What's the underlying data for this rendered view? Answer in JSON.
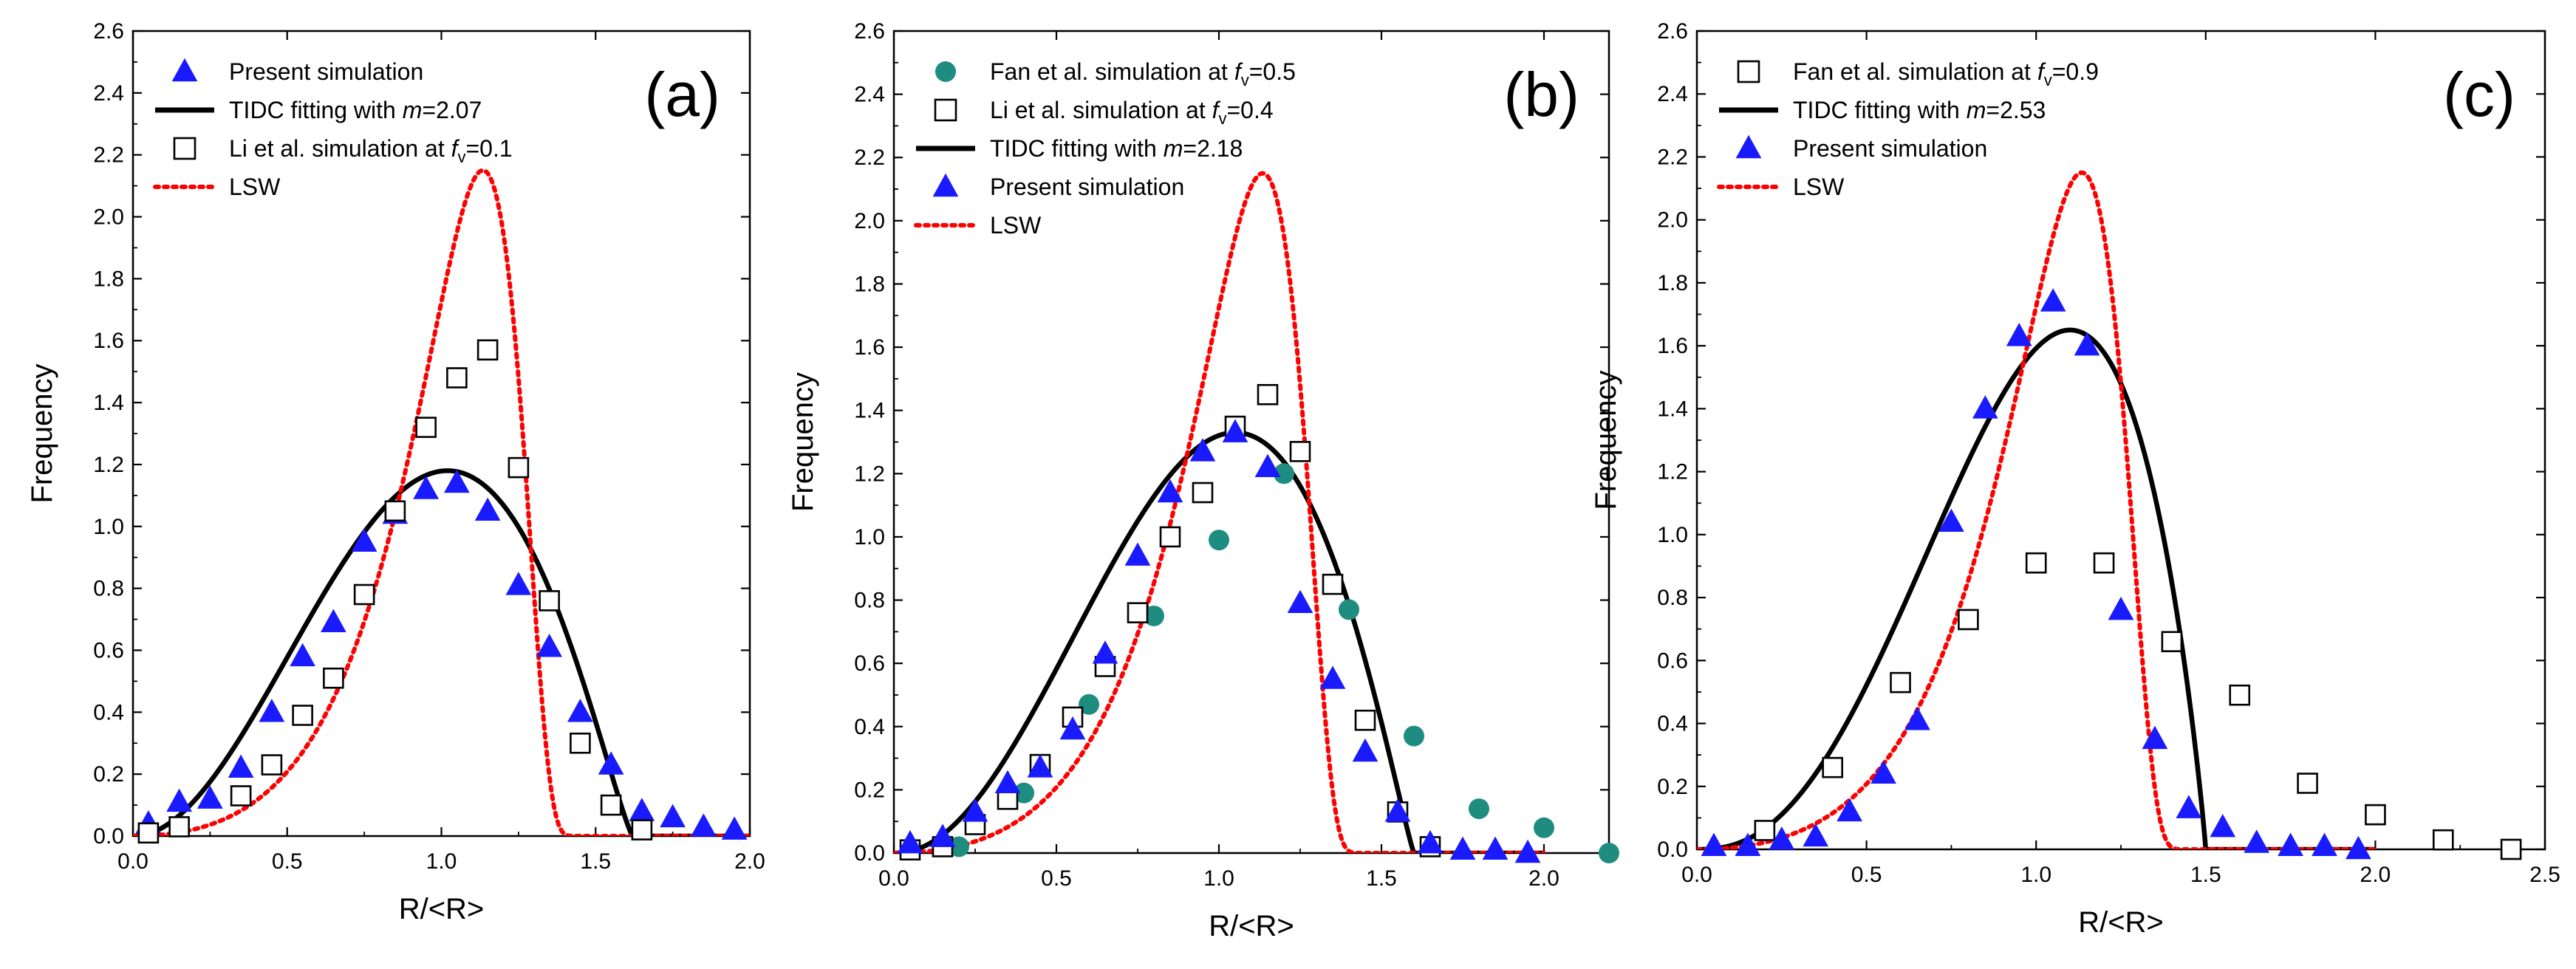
{
  "chart_data": [
    {
      "type": "scatter",
      "panel_label": "(a)",
      "xlabel": "R/<R>",
      "ylabel": "Frequency",
      "xlim": [
        0,
        2.0
      ],
      "ylim": [
        0,
        2.6
      ],
      "xticks": [
        0.0,
        0.5,
        1.0,
        1.5,
        2.0
      ],
      "xtick_labels": [
        "0.0",
        "0.5",
        "1.0",
        "1.5",
        "2.0"
      ],
      "yticks": [
        0,
        0.2,
        0.4,
        0.6,
        0.8,
        1.0,
        1.2,
        1.4,
        1.6,
        1.8,
        2.0,
        2.2,
        2.4,
        2.6
      ],
      "ytick_labels": [
        "0.0",
        "0.2",
        "0.4",
        "0.6",
        "0.8",
        "1.0",
        "1.2",
        "1.4",
        "1.6",
        "1.8",
        "2.0",
        "2.2",
        "2.4",
        "2.6"
      ],
      "grid": false,
      "legend_position": "top-left",
      "legend": [
        {
          "marker": "triangle",
          "parts": [
            {
              "t": "Present simulation"
            }
          ]
        },
        {
          "marker": "line-black",
          "parts": [
            {
              "t": "TIDC fitting with "
            },
            {
              "t": "m",
              "i": true
            },
            {
              "t": "=2.07"
            }
          ]
        },
        {
          "marker": "square",
          "parts": [
            {
              "t": "Li et al. simulation at "
            },
            {
              "t": "f",
              "i": true
            },
            {
              "t": "v",
              "sub": true
            },
            {
              "t": "=0.1"
            }
          ]
        },
        {
          "marker": "dotted-red",
          "parts": [
            {
              "t": "LSW"
            }
          ]
        }
      ],
      "series": [
        {
          "name": "Present simulation",
          "style": "triangle",
          "color": "#1a1aff",
          "x": [
            0.05,
            0.15,
            0.25,
            0.35,
            0.45,
            0.55,
            0.65,
            0.75,
            0.85,
            0.95,
            1.05,
            1.15,
            1.25,
            1.35,
            1.45,
            1.55,
            1.65,
            1.75,
            1.85,
            1.95
          ],
          "y": [
            0.04,
            0.11,
            0.12,
            0.22,
            0.4,
            0.58,
            0.69,
            0.95,
            1.04,
            1.12,
            1.14,
            1.05,
            0.81,
            0.61,
            0.4,
            0.23,
            0.08,
            0.06,
            0.03,
            0.02
          ]
        },
        {
          "name": "Li et al. simulation",
          "style": "square",
          "color": "#000000",
          "x": [
            0.05,
            0.15,
            0.35,
            0.45,
            0.55,
            0.65,
            0.75,
            0.85,
            0.95,
            1.05,
            1.15,
            1.25,
            1.35,
            1.45,
            1.55,
            1.65
          ],
          "y": [
            0.01,
            0.03,
            0.13,
            0.23,
            0.39,
            0.51,
            0.78,
            1.05,
            1.32,
            1.48,
            1.57,
            1.19,
            0.76,
            0.3,
            0.1,
            0.02
          ]
        },
        {
          "name": "TIDC fitting",
          "style": "solid-line",
          "color": "#000000",
          "curve": "tidc",
          "m": 2.07,
          "peak": 1.18,
          "xpeak": 1.02,
          "xmax": 1.62
        },
        {
          "name": "LSW",
          "style": "dotted-line",
          "color": "#ff0000",
          "curve": "lsw"
        }
      ]
    },
    {
      "type": "scatter",
      "panel_label": "(b)",
      "xlabel": "R/<R>",
      "ylabel": "Frequency",
      "xlim": [
        0,
        2.2
      ],
      "ylim": [
        0,
        2.6
      ],
      "xticks": [
        0.0,
        0.5,
        1.0,
        1.5,
        2.0
      ],
      "xtick_labels": [
        "0.0",
        "0.5",
        "1.0",
        "1.5",
        "2.0"
      ],
      "yticks": [
        0,
        0.2,
        0.4,
        0.6,
        0.8,
        1.0,
        1.2,
        1.4,
        1.6,
        1.8,
        2.0,
        2.2,
        2.4,
        2.6
      ],
      "ytick_labels": [
        "0.0",
        "0.2",
        "0.4",
        "0.6",
        "0.8",
        "1.0",
        "1.2",
        "1.4",
        "1.6",
        "1.8",
        "2.0",
        "2.2",
        "2.4",
        "2.6"
      ],
      "grid": false,
      "legend_position": "top-left",
      "legend": [
        {
          "marker": "circle",
          "parts": [
            {
              "t": "Fan et al. simulation at "
            },
            {
              "t": "f",
              "i": true
            },
            {
              "t": "v",
              "sub": true
            },
            {
              "t": "=0.5"
            }
          ]
        },
        {
          "marker": "square",
          "parts": [
            {
              "t": "Li et al. simulation at "
            },
            {
              "t": "f",
              "i": true
            },
            {
              "t": "v",
              "sub": true
            },
            {
              "t": "=0.4"
            }
          ]
        },
        {
          "marker": "line-black",
          "parts": [
            {
              "t": "TIDC fitting with "
            },
            {
              "t": "m",
              "i": true
            },
            {
              "t": "=2.18"
            }
          ]
        },
        {
          "marker": "triangle",
          "parts": [
            {
              "t": "Present simulation"
            }
          ]
        },
        {
          "marker": "dotted-red",
          "parts": [
            {
              "t": "LSW"
            }
          ]
        }
      ],
      "series": [
        {
          "name": "Fan et al. simulation",
          "style": "circle",
          "color": "#1f8c80",
          "x": [
            0.2,
            0.4,
            0.6,
            0.8,
            1.0,
            1.2,
            1.4,
            1.6,
            1.8,
            2.0,
            2.2
          ],
          "y": [
            0.02,
            0.19,
            0.47,
            0.75,
            0.99,
            1.2,
            0.77,
            0.37,
            0.14,
            0.08,
            0.0
          ]
        },
        {
          "name": "Li et al. simulation",
          "style": "square",
          "color": "#000000",
          "x": [
            0.05,
            0.15,
            0.25,
            0.35,
            0.45,
            0.55,
            0.65,
            0.75,
            0.85,
            0.95,
            1.05,
            1.15,
            1.25,
            1.35,
            1.45,
            1.55,
            1.65
          ],
          "y": [
            0.01,
            0.02,
            0.09,
            0.17,
            0.28,
            0.43,
            0.59,
            0.76,
            1.0,
            1.14,
            1.35,
            1.45,
            1.27,
            0.85,
            0.42,
            0.13,
            0.02
          ]
        },
        {
          "name": "Present simulation",
          "style": "triangle",
          "color": "#1a1aff",
          "x": [
            0.05,
            0.15,
            0.25,
            0.35,
            0.45,
            0.55,
            0.65,
            0.75,
            0.85,
            0.95,
            1.05,
            1.15,
            1.25,
            1.35,
            1.45,
            1.55,
            1.65,
            1.75,
            1.85,
            1.95
          ],
          "y": [
            0.03,
            0.05,
            0.13,
            0.22,
            0.27,
            0.39,
            0.63,
            0.94,
            1.14,
            1.27,
            1.33,
            1.22,
            0.79,
            0.55,
            0.32,
            0.13,
            0.03,
            0.01,
            0.01,
            0.0
          ]
        },
        {
          "name": "TIDC fitting",
          "style": "solid-line",
          "color": "#000000",
          "curve": "tidc",
          "m": 2.18,
          "peak": 1.33,
          "xpeak": 1.05,
          "xmax": 1.6
        },
        {
          "name": "LSW",
          "style": "dotted-line",
          "color": "#ff0000",
          "curve": "lsw"
        }
      ]
    },
    {
      "type": "scatter",
      "panel_label": "(c)",
      "xlabel": "R/<R>",
      "ylabel": "Frequency",
      "xlim": [
        0,
        2.5
      ],
      "ylim": [
        0,
        2.6
      ],
      "xticks": [
        0.0,
        0.5,
        1.0,
        1.5,
        2.0,
        2.5
      ],
      "xtick_labels": [
        "0.0",
        "0.5",
        "1.0",
        "1.5",
        "2.0",
        "2.5"
      ],
      "yticks": [
        0,
        0.2,
        0.4,
        0.6,
        0.8,
        1.0,
        1.2,
        1.4,
        1.6,
        1.8,
        2.0,
        2.2,
        2.4,
        2.6
      ],
      "ytick_labels": [
        "0.0",
        "0.2",
        "0.4",
        "0.6",
        "0.8",
        "1.0",
        "1.2",
        "1.4",
        "1.6",
        "1.8",
        "2.0",
        "2.2",
        "2.4",
        "2.6"
      ],
      "grid": false,
      "legend_position": "top-left",
      "legend": [
        {
          "marker": "square",
          "parts": [
            {
              "t": "Fan et al. simulation at "
            },
            {
              "t": "f",
              "i": true
            },
            {
              "t": "v",
              "sub": true
            },
            {
              "t": "=0.9"
            }
          ]
        },
        {
          "marker": "line-black",
          "parts": [
            {
              "t": "TIDC fitting with "
            },
            {
              "t": "m",
              "i": true
            },
            {
              "t": "=2.53"
            }
          ]
        },
        {
          "marker": "triangle",
          "parts": [
            {
              "t": "Present simulation"
            }
          ]
        },
        {
          "marker": "dotted-red",
          "parts": [
            {
              "t": "LSW"
            }
          ]
        }
      ],
      "series": [
        {
          "name": "Fan et al. simulation",
          "style": "square",
          "color": "#000000",
          "x": [
            0.2,
            0.4,
            0.6,
            0.8,
            1.0,
            1.2,
            1.4,
            1.6,
            1.8,
            2.0,
            2.2,
            2.4
          ],
          "y": [
            0.06,
            0.26,
            0.53,
            0.73,
            0.91,
            0.91,
            0.66,
            0.49,
            0.21,
            0.11,
            0.03,
            0.0
          ]
        },
        {
          "name": "Present simulation",
          "style": "triangle",
          "color": "#1a1aff",
          "x": [
            0.05,
            0.15,
            0.25,
            0.35,
            0.45,
            0.55,
            0.65,
            0.75,
            0.85,
            0.95,
            1.05,
            1.15,
            1.25,
            1.35,
            1.45,
            1.55,
            1.65,
            1.75,
            1.85,
            1.95
          ],
          "y": [
            0.01,
            0.01,
            0.03,
            0.04,
            0.12,
            0.24,
            0.41,
            1.04,
            1.4,
            1.63,
            1.74,
            1.6,
            0.76,
            0.35,
            0.13,
            0.07,
            0.02,
            0.01,
            0.01,
            0.0
          ]
        },
        {
          "name": "TIDC fitting",
          "style": "solid-line",
          "color": "#000000",
          "curve": "tidc",
          "m": 2.53,
          "peak": 1.65,
          "xpeak": 1.1,
          "xmax": 1.5
        },
        {
          "name": "LSW",
          "style": "dotted-line",
          "color": "#ff0000",
          "curve": "lsw"
        }
      ]
    }
  ]
}
